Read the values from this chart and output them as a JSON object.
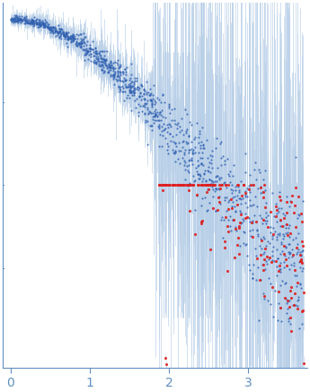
{
  "title": "",
  "xlabel": "",
  "ylabel": "",
  "xlim": [
    -0.1,
    3.75
  ],
  "ylim": [
    -0.05,
    1.05
  ],
  "background_color": "#ffffff",
  "dot_color_blue": "#3060b0",
  "dot_color_red": "#dd2020",
  "errorbar_color": "#b8cfe8",
  "axis_color": "#6090c0",
  "tick_color": "#6090c0",
  "xticks": [
    0,
    1,
    2,
    3
  ],
  "seed": 12345,
  "n_blue_main": 700,
  "n_blue_high": 500,
  "n_red_points": 200
}
